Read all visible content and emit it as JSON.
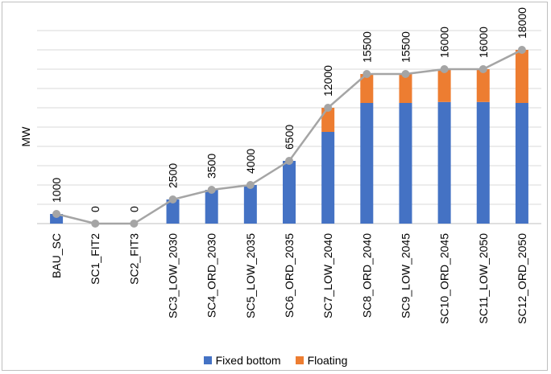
{
  "chart_data": {
    "type": "bar",
    "stacked": true,
    "title": "",
    "xlabel": "",
    "ylabel": "MW",
    "ylim": [
      0,
      20000
    ],
    "grid": true,
    "legend_position": "bottom",
    "categories": [
      "BAU_SC",
      "SC1_FIT2",
      "SC2_FIT3",
      "SC3_LOW_2030",
      "SC4_ORD_2030",
      "SC5_LOW_2035",
      "SC6_ORD_2035",
      "SC7_LOW_2040",
      "SC8_ORD_2040",
      "SC9_LOW_2045",
      "SC10_ORD_2045",
      "SC11_LOW_2050",
      "SC12_ORD_2050"
    ],
    "series": [
      {
        "name": "Fixed bottom",
        "color": "#4472c4",
        "values": [
          1000,
          0,
          0,
          2500,
          3500,
          4000,
          6500,
          9500,
          12500,
          12500,
          12600,
          12600,
          12500
        ]
      },
      {
        "name": "Floating",
        "color": "#ed7d31",
        "values": [
          0,
          0,
          0,
          0,
          0,
          0,
          0,
          2500,
          3000,
          3000,
          3400,
          3400,
          5500
        ]
      }
    ],
    "totals": {
      "color": "#a5a5a5",
      "values": [
        1000,
        0,
        0,
        2500,
        3500,
        4000,
        6500,
        12000,
        15500,
        15500,
        16000,
        16000,
        18000
      ]
    },
    "data_labels": [
      "1000",
      "0",
      "0",
      "2500",
      "3500",
      "4000",
      "6500",
      "12000",
      "15500",
      "15500",
      "16000",
      "16000",
      "18000"
    ]
  }
}
